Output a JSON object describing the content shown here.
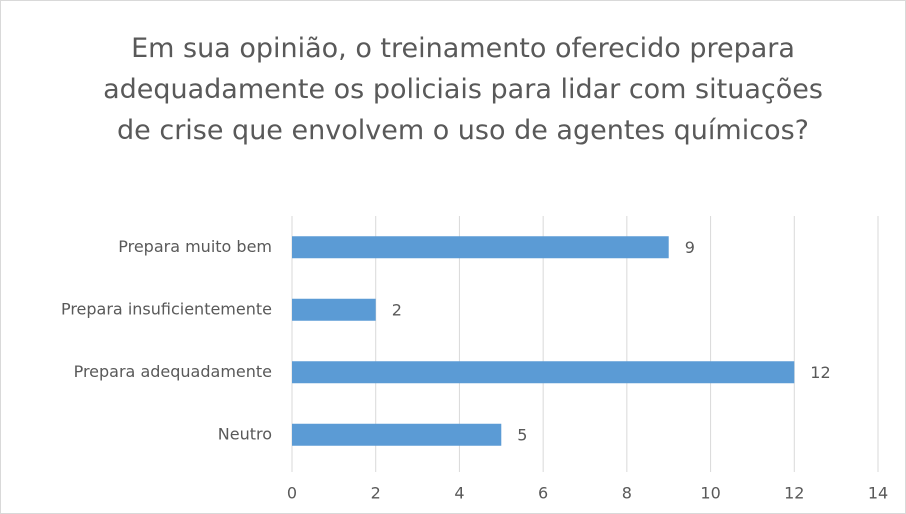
{
  "chart_data": {
    "type": "bar",
    "orientation": "horizontal",
    "title": "Em sua opinião, o treinamento oferecido prepara adequadamente os policiais para lidar com situações de crise que envolvem o uso de agentes químicos?",
    "categories": [
      "Prepara muito bem",
      "Prepara insuficientemente",
      "Prepara adequadamente",
      "Neutro"
    ],
    "values": [
      9,
      2,
      12,
      5
    ],
    "color": "#5b9bd5",
    "xlim": [
      0,
      14
    ],
    "xticks": [
      0,
      2,
      4,
      6,
      8,
      10,
      12,
      14
    ],
    "grid": true
  }
}
